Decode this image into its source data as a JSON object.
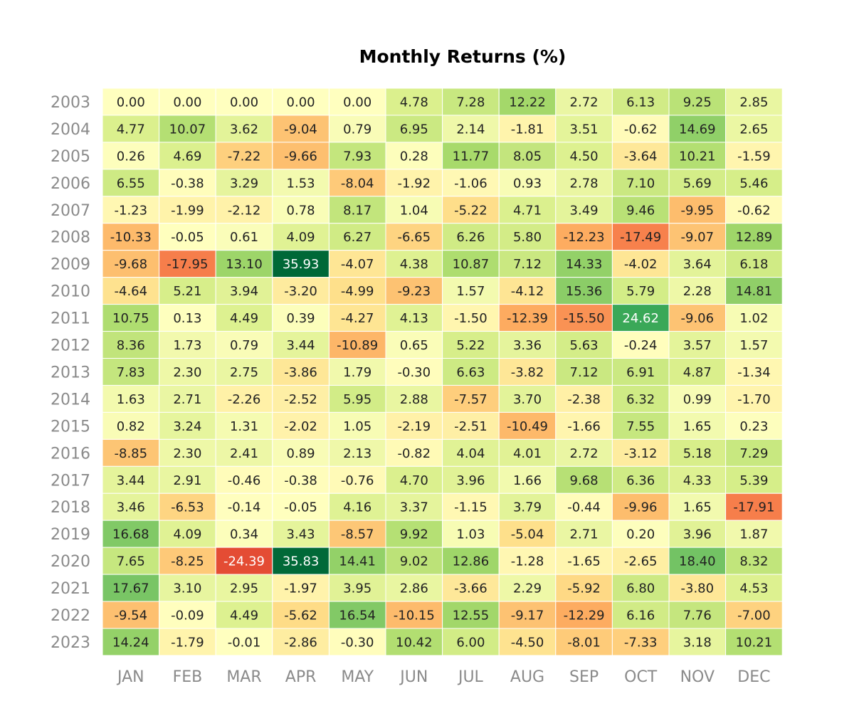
{
  "chart_data": {
    "type": "heatmap",
    "title": "Monthly Returns (%)",
    "xlabel": "",
    "ylabel": "",
    "x_labels": [
      "JAN",
      "FEB",
      "MAR",
      "APR",
      "MAY",
      "JUN",
      "JUL",
      "AUG",
      "SEP",
      "OCT",
      "NOV",
      "DEC"
    ],
    "y_labels": [
      "2003",
      "2004",
      "2005",
      "2006",
      "2007",
      "2008",
      "2009",
      "2010",
      "2011",
      "2012",
      "2013",
      "2014",
      "2015",
      "2016",
      "2017",
      "2018",
      "2019",
      "2020",
      "2021",
      "2022",
      "2023"
    ],
    "value_format": "two decimals",
    "colormap": "red-yellow-green (negative red, positive green)",
    "color_range": [
      -36,
      36
    ],
    "values": [
      [
        0.0,
        0.0,
        0.0,
        0.0,
        0.0,
        4.78,
        7.28,
        12.22,
        2.72,
        6.13,
        9.25,
        2.85
      ],
      [
        4.77,
        10.07,
        3.62,
        -9.04,
        0.79,
        6.95,
        2.14,
        -1.81,
        3.51,
        -0.62,
        14.69,
        2.65
      ],
      [
        0.26,
        4.69,
        -7.22,
        -9.66,
        7.93,
        0.28,
        11.77,
        8.05,
        4.5,
        -3.64,
        10.21,
        -1.59
      ],
      [
        6.55,
        -0.38,
        3.29,
        1.53,
        -8.04,
        -1.92,
        -1.06,
        0.93,
        2.78,
        7.1,
        5.69,
        5.46
      ],
      [
        -1.23,
        -1.99,
        -2.12,
        0.78,
        8.17,
        1.04,
        -5.22,
        4.71,
        3.49,
        9.46,
        -9.95,
        -0.62
      ],
      [
        -10.33,
        -0.05,
        0.61,
        4.09,
        6.27,
        -6.65,
        6.26,
        5.8,
        -12.23,
        -17.49,
        -9.07,
        12.89
      ],
      [
        -9.68,
        -17.95,
        13.1,
        35.93,
        -4.07,
        4.38,
        10.87,
        7.12,
        14.33,
        -4.02,
        3.64,
        6.18
      ],
      [
        -4.64,
        5.21,
        3.94,
        -3.2,
        -4.99,
        -9.23,
        1.57,
        -4.12,
        15.36,
        5.79,
        2.28,
        14.81
      ],
      [
        10.75,
        0.13,
        4.49,
        0.39,
        -4.27,
        4.13,
        -1.5,
        -12.39,
        -15.5,
        24.62,
        -9.06,
        1.02
      ],
      [
        8.36,
        1.73,
        0.79,
        3.44,
        -10.89,
        0.65,
        5.22,
        3.36,
        5.63,
        -0.24,
        3.57,
        1.57
      ],
      [
        7.83,
        2.3,
        2.75,
        -3.86,
        1.79,
        -0.3,
        6.63,
        -3.82,
        7.12,
        6.91,
        4.87,
        -1.34
      ],
      [
        1.63,
        2.71,
        -2.26,
        -2.52,
        5.95,
        2.88,
        -7.57,
        3.7,
        -2.38,
        6.32,
        0.99,
        -1.7
      ],
      [
        0.82,
        3.24,
        1.31,
        -2.02,
        1.05,
        -2.19,
        -2.51,
        -10.49,
        -1.66,
        7.55,
        1.65,
        0.23
      ],
      [
        -8.85,
        2.3,
        2.41,
        0.89,
        2.13,
        -0.82,
        4.04,
        4.01,
        2.72,
        -3.12,
        5.18,
        7.29
      ],
      [
        3.44,
        2.91,
        -0.46,
        -0.38,
        -0.76,
        4.7,
        3.96,
        1.66,
        9.68,
        6.36,
        4.33,
        5.39
      ],
      [
        3.46,
        -6.53,
        -0.14,
        -0.05,
        4.16,
        3.37,
        -1.15,
        3.79,
        -0.44,
        -9.96,
        1.65,
        -17.91
      ],
      [
        16.68,
        4.09,
        0.34,
        3.43,
        -8.57,
        9.92,
        1.03,
        -5.04,
        2.71,
        0.2,
        3.96,
        1.87
      ],
      [
        7.65,
        -8.25,
        -24.39,
        35.83,
        14.41,
        9.02,
        12.86,
        -1.28,
        -1.65,
        -2.65,
        18.4,
        8.32
      ],
      [
        17.67,
        3.1,
        2.95,
        -1.97,
        3.95,
        2.86,
        -3.66,
        2.29,
        -5.92,
        6.8,
        -3.8,
        4.53
      ],
      [
        -9.54,
        -0.09,
        4.49,
        -5.62,
        16.54,
        -10.15,
        12.55,
        -9.17,
        -12.29,
        6.16,
        7.76,
        -7.0
      ],
      [
        14.24,
        -1.79,
        -0.01,
        -2.86,
        -0.3,
        10.42,
        6.0,
        -4.5,
        -8.01,
        -7.33,
        3.18,
        10.21
      ]
    ],
    "grid": false,
    "legend": "none"
  }
}
